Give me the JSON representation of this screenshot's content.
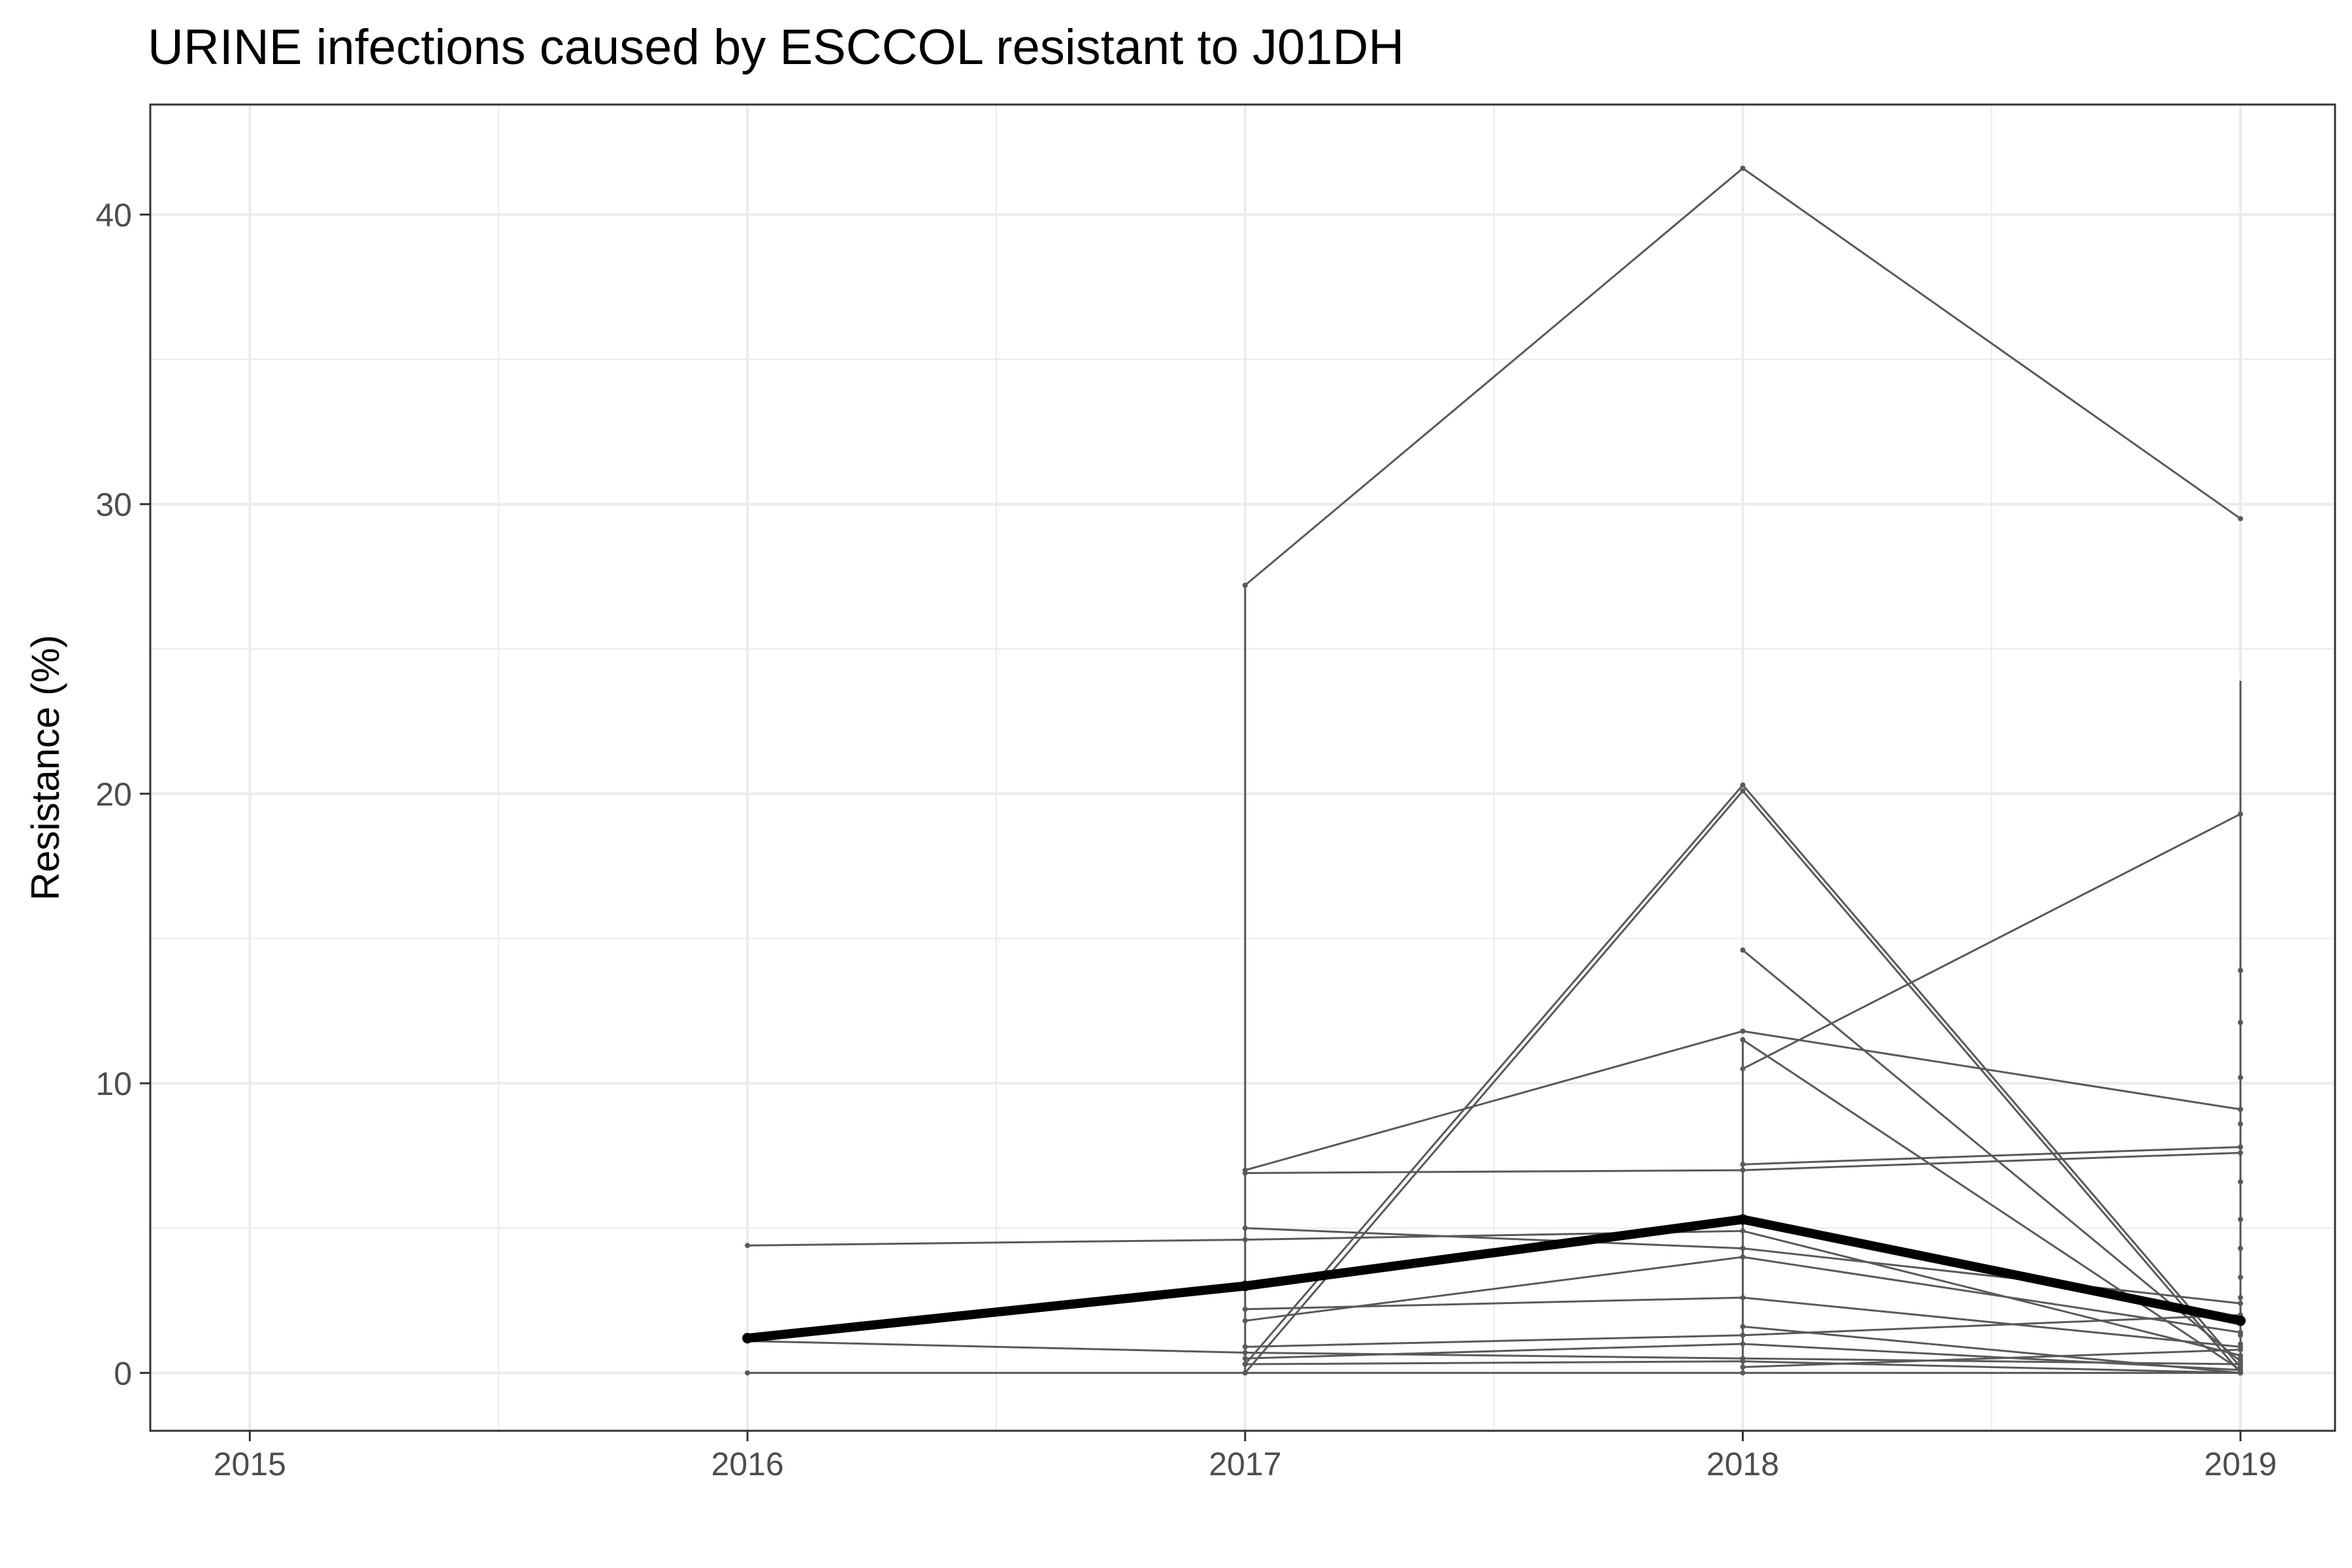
{
  "chart_data": {
    "type": "line",
    "title": "URINE infections caused by ESCCOL resistant to J01DH",
    "xlabel": "",
    "ylabel": "Resistance (%)",
    "x_ticks": [
      "2015",
      "2016",
      "2017",
      "2018",
      "2019"
    ],
    "y_ticks": [
      "0",
      "10",
      "20",
      "30",
      "40"
    ],
    "xlim": [
      2014.8,
      2019.19
    ],
    "ylim": [
      -2.0,
      43.8
    ],
    "grid": true,
    "legend": "none",
    "colors": {
      "series": "#595959",
      "mean": "#000000",
      "grid": "#ebebeb",
      "frame": "#333333"
    },
    "series": [
      {
        "x": [
          2017,
          2018,
          2019
        ],
        "y": [
          27.2,
          41.6,
          29.5
        ]
      },
      {
        "x": [
          2017,
          2018,
          2019
        ],
        "y": [
          0.3,
          20.3,
          0.2
        ]
      },
      {
        "x": [
          2017,
          2018,
          2019
        ],
        "y": [
          0.0,
          20.1,
          0.0
        ]
      },
      {
        "x": [
          2018,
          2019
        ],
        "y": [
          10.5,
          19.3
        ]
      },
      {
        "x": [
          2018,
          2019
        ],
        "y": [
          14.6,
          0.4
        ]
      },
      {
        "x": [
          2018,
          2019
        ],
        "y": [
          11.5,
          0.1
        ]
      },
      {
        "x": [
          2017,
          2018,
          2019
        ],
        "y": [
          7.0,
          11.8,
          9.1
        ]
      },
      {
        "x": [
          2017,
          2018,
          2019
        ],
        "y": [
          6.9,
          7.0,
          7.6
        ]
      },
      {
        "x": [
          2018,
          2019
        ],
        "y": [
          7.2,
          7.8
        ]
      },
      {
        "x": [
          2016,
          2017,
          2018,
          2019
        ],
        "y": [
          4.4,
          4.6,
          4.9,
          0.6
        ]
      },
      {
        "x": [
          2017,
          2018,
          2019
        ],
        "y": [
          5.0,
          4.3,
          2.4
        ]
      },
      {
        "x": [
          2017,
          2018,
          2019
        ],
        "y": [
          1.8,
          4.0,
          1.4
        ]
      },
      {
        "x": [
          2017,
          2018,
          2019
        ],
        "y": [
          2.2,
          2.6,
          0.9
        ]
      },
      {
        "x": [
          2016,
          2017,
          2018,
          2019
        ],
        "y": [
          1.1,
          0.7,
          0.5,
          0.3
        ]
      },
      {
        "x": [
          2017,
          2018,
          2019
        ],
        "y": [
          0.9,
          1.3,
          2.0
        ]
      },
      {
        "x": [
          2017,
          2018,
          2019
        ],
        "y": [
          0.5,
          1.0,
          0.1
        ]
      },
      {
        "x": [
          2016,
          2017,
          2018,
          2019
        ],
        "y": [
          0.0,
          0.0,
          0.0,
          0.0
        ]
      },
      {
        "x": [
          2017,
          2018,
          2019
        ],
        "y": [
          0.3,
          0.4,
          0.0
        ]
      },
      {
        "x": [
          2018,
          2019
        ],
        "y": [
          1.6,
          0.0
        ]
      },
      {
        "x": [
          2018,
          2019
        ],
        "y": [
          0.2,
          0.8
        ]
      }
    ],
    "mean_series": {
      "x": [
        2016,
        2017,
        2018,
        2019
      ],
      "y": [
        1.2,
        3.0,
        5.3,
        1.8
      ]
    },
    "vertical_spans": [
      {
        "x": 2017,
        "y": [
          0.0,
          27.2
        ]
      },
      {
        "x": 2018,
        "y": [
          0.0,
          11.6
        ]
      },
      {
        "x": 2019,
        "y": [
          0.0,
          23.9
        ]
      }
    ],
    "extra_points_2019": [
      13.9,
      12.1,
      10.2,
      8.6,
      6.6,
      5.3,
      4.3,
      3.3,
      2.6,
      1.3,
      1.0,
      0.5
    ]
  }
}
